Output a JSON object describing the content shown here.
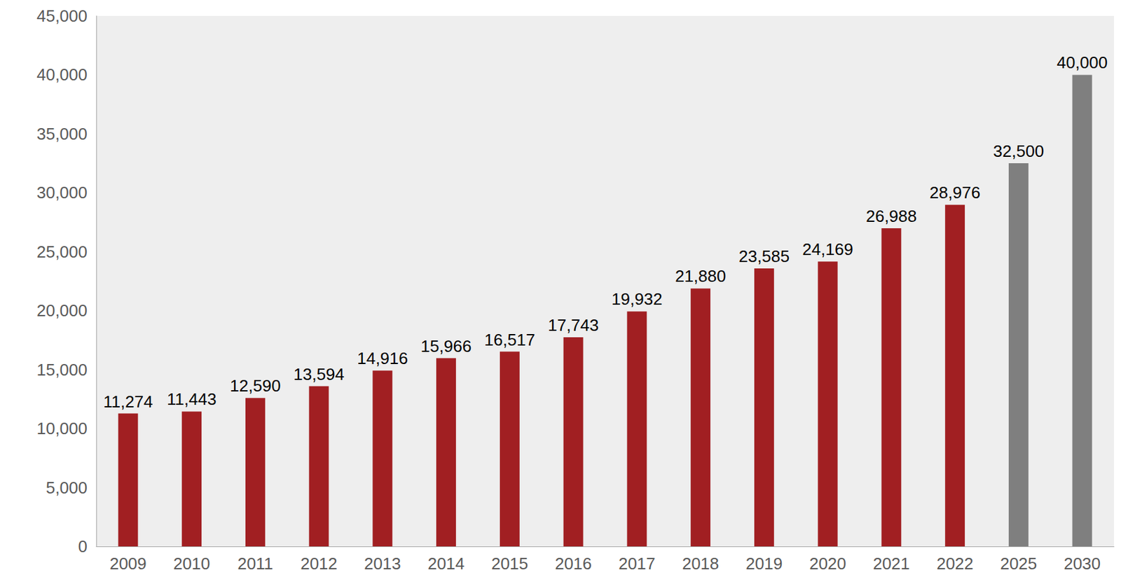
{
  "chart_data": {
    "type": "bar",
    "categories": [
      "2009",
      "2010",
      "2011",
      "2012",
      "2013",
      "2014",
      "2015",
      "2016",
      "2017",
      "2018",
      "2019",
      "2020",
      "2021",
      "2022",
      "2025",
      "2030"
    ],
    "values": [
      11274,
      11443,
      12590,
      13594,
      14916,
      15966,
      16517,
      17743,
      19932,
      21880,
      23585,
      24169,
      26988,
      28976,
      32500,
      40000
    ],
    "value_labels": [
      "11,274",
      "11,443",
      "12,590",
      "13,594",
      "14,916",
      "15,966",
      "16,517",
      "17,743",
      "19,932",
      "21,880",
      "23,585",
      "24,169",
      "26,988",
      "28,976",
      "32,500",
      "40,000"
    ],
    "colors": [
      "#a11f22",
      "#a11f22",
      "#a11f22",
      "#a11f22",
      "#a11f22",
      "#a11f22",
      "#a11f22",
      "#a11f22",
      "#a11f22",
      "#a11f22",
      "#a11f22",
      "#a11f22",
      "#a11f22",
      "#a11f22",
      "#7f7f7f",
      "#7f7f7f"
    ],
    "ylim": [
      0,
      45000
    ],
    "yticks": [
      0,
      {
        "value": 5000,
        "label": "5,000"
      },
      {
        "value": 10000,
        "label": "10,000"
      },
      {
        "value": 15000,
        "label": "15,000"
      },
      {
        "value": 20000,
        "label": "20,000"
      },
      {
        "value": 25000,
        "label": "25,000"
      },
      {
        "value": 30000,
        "label": "30,000"
      },
      {
        "value": 35000,
        "label": "35,000"
      },
      {
        "value": 40000,
        "label": "40,000"
      },
      {
        "value": 45000,
        "label": "45,000"
      }
    ],
    "grid": false,
    "data_labels": true
  }
}
